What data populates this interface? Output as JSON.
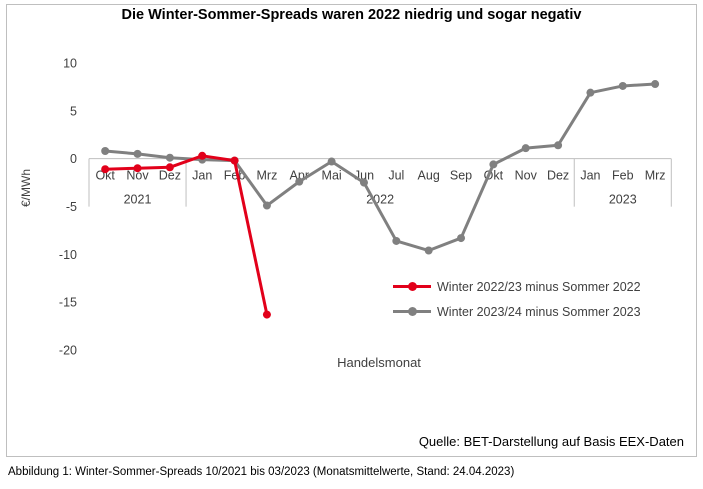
{
  "chart_data": {
    "type": "line",
    "title": "Die Winter-Sommer-Spreads waren 2022 niedrig und sogar negativ",
    "xlabel": "Handelsmonat",
    "ylabel": "€/MWh",
    "ylim": [
      -20,
      10
    ],
    "yticks": [
      10,
      5,
      0,
      -5,
      -10,
      -15,
      -20
    ],
    "categories": [
      "Okt",
      "Nov",
      "Dez",
      "Jan",
      "Feb",
      "Mrz",
      "Apr",
      "Mai",
      "Jun",
      "Jul",
      "Aug",
      "Sep",
      "Okt",
      "Nov",
      "Dez",
      "Jan",
      "Feb",
      "Mrz"
    ],
    "year_groups": [
      {
        "label": "2021",
        "start": 0,
        "end": 2
      },
      {
        "label": "2022",
        "start": 3,
        "end": 14
      },
      {
        "label": "2023",
        "start": 15,
        "end": 17
      }
    ],
    "series": [
      {
        "name": "Winter 2022/23 minus Sommer 2022",
        "color": "#e2001a",
        "values": [
          -1.1,
          -1.0,
          -0.9,
          0.3,
          -0.2,
          -16.3,
          null,
          null,
          null,
          null,
          null,
          null,
          null,
          null,
          null,
          null,
          null,
          null
        ]
      },
      {
        "name": "Winter 2023/24 minus Sommer 2023",
        "color": "#808080",
        "values": [
          0.8,
          0.5,
          0.1,
          -0.1,
          -0.2,
          -4.9,
          -2.4,
          -0.3,
          -2.5,
          -8.6,
          -9.6,
          -8.3,
          -0.6,
          1.1,
          1.4,
          6.9,
          7.6,
          7.8
        ]
      }
    ],
    "legend_position": "lower-right",
    "grid": false
  },
  "source": "Quelle: BET-Darstellung auf Basis EEX-Daten",
  "caption": "Abbildung 1: Winter-Sommer-Spreads 10/2021 bis 03/2023 (Monatsmittelwerte, Stand: 24.04.2023)"
}
